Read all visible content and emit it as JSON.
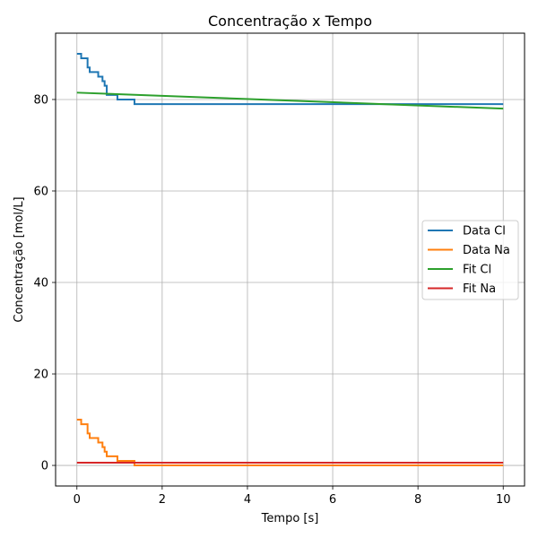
{
  "chart_data": {
    "type": "line",
    "title": "Concentração x Tempo",
    "xlabel": "Tempo [s]",
    "ylabel": "Concentração [mol/L]",
    "xlim": [
      -0.5,
      10.5
    ],
    "ylim": [
      -4.5,
      94.5
    ],
    "xticks": [
      0,
      2,
      4,
      6,
      8,
      10
    ],
    "yticks": [
      0,
      20,
      40,
      60,
      80
    ],
    "grid": true,
    "legend_position": "center-right",
    "series": [
      {
        "name": "Data Cl",
        "color": "#1f77b4",
        "step": true,
        "x": [
          0,
          0.1,
          0.25,
          0.3,
          0.5,
          0.6,
          0.65,
          0.7,
          0.95,
          1.3,
          1.35,
          10
        ],
        "y": [
          90,
          89,
          87,
          86,
          85,
          84,
          83,
          81,
          80,
          80,
          79,
          79
        ]
      },
      {
        "name": "Data Na",
        "color": "#ff7f0e",
        "step": true,
        "x": [
          0,
          0.1,
          0.25,
          0.3,
          0.5,
          0.6,
          0.65,
          0.7,
          0.95,
          1.3,
          1.35,
          10
        ],
        "y": [
          10,
          9,
          7,
          6,
          5,
          4,
          3,
          2,
          1,
          1,
          0,
          0
        ]
      },
      {
        "name": "Fit Cl",
        "color": "#2ca02c",
        "step": false,
        "x": [
          0,
          10
        ],
        "y": [
          81.5,
          78
        ]
      },
      {
        "name": "Fit Na",
        "color": "#d62728",
        "step": false,
        "x": [
          0,
          10
        ],
        "y": [
          0.6,
          0.6
        ]
      }
    ]
  }
}
